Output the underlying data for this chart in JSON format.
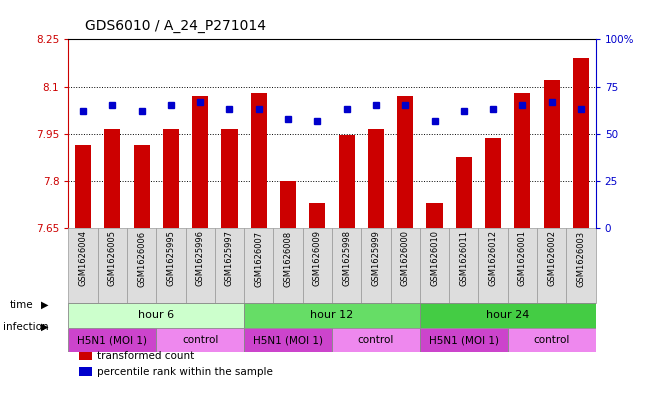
{
  "title": "GDS6010 / A_24_P271014",
  "samples": [
    "GSM1626004",
    "GSM1626005",
    "GSM1626006",
    "GSM1625995",
    "GSM1625996",
    "GSM1625997",
    "GSM1626007",
    "GSM1626008",
    "GSM1626009",
    "GSM1625998",
    "GSM1625999",
    "GSM1626000",
    "GSM1626010",
    "GSM1626011",
    "GSM1626012",
    "GSM1626001",
    "GSM1626002",
    "GSM1626003"
  ],
  "bar_values": [
    7.915,
    7.965,
    7.915,
    7.965,
    8.07,
    7.965,
    8.08,
    7.8,
    7.73,
    7.945,
    7.965,
    8.07,
    7.73,
    7.875,
    7.935,
    8.08,
    8.12,
    8.19
  ],
  "blue_values": [
    62,
    65,
    62,
    65,
    67,
    63,
    63,
    58,
    57,
    63,
    65,
    65,
    57,
    62,
    63,
    65,
    67,
    63
  ],
  "ymin": 7.65,
  "ymax": 8.25,
  "yticks": [
    7.65,
    7.8,
    7.95,
    8.1,
    8.25
  ],
  "yright_ticks": [
    0,
    25,
    50,
    75,
    100
  ],
  "bar_color": "#cc0000",
  "blue_color": "#0000cc",
  "grid_lines": [
    7.8,
    7.95,
    8.1
  ],
  "time_groups": [
    {
      "label": "hour 6",
      "start": 0,
      "end": 6,
      "color": "#ccffcc"
    },
    {
      "label": "hour 12",
      "start": 6,
      "end": 12,
      "color": "#66dd66"
    },
    {
      "label": "hour 24",
      "start": 12,
      "end": 18,
      "color": "#44cc44"
    }
  ],
  "infection_groups": [
    {
      "label": "H5N1 (MOI 1)",
      "start": 0,
      "end": 3,
      "color": "#cc44cc"
    },
    {
      "label": "control",
      "start": 3,
      "end": 6,
      "color": "#ee88ee"
    },
    {
      "label": "H5N1 (MOI 1)",
      "start": 6,
      "end": 9,
      "color": "#cc44cc"
    },
    {
      "label": "control",
      "start": 9,
      "end": 12,
      "color": "#ee88ee"
    },
    {
      "label": "H5N1 (MOI 1)",
      "start": 12,
      "end": 15,
      "color": "#cc44cc"
    },
    {
      "label": "control",
      "start": 15,
      "end": 18,
      "color": "#ee88ee"
    }
  ],
  "legend_items": [
    {
      "label": "transformed count",
      "color": "#cc0000"
    },
    {
      "label": "percentile rank within the sample",
      "color": "#0000cc"
    }
  ],
  "bg_color": "#ffffff",
  "plot_bg": "#ffffff",
  "label_cell_color": "#dddddd",
  "label_cell_edge": "#999999"
}
